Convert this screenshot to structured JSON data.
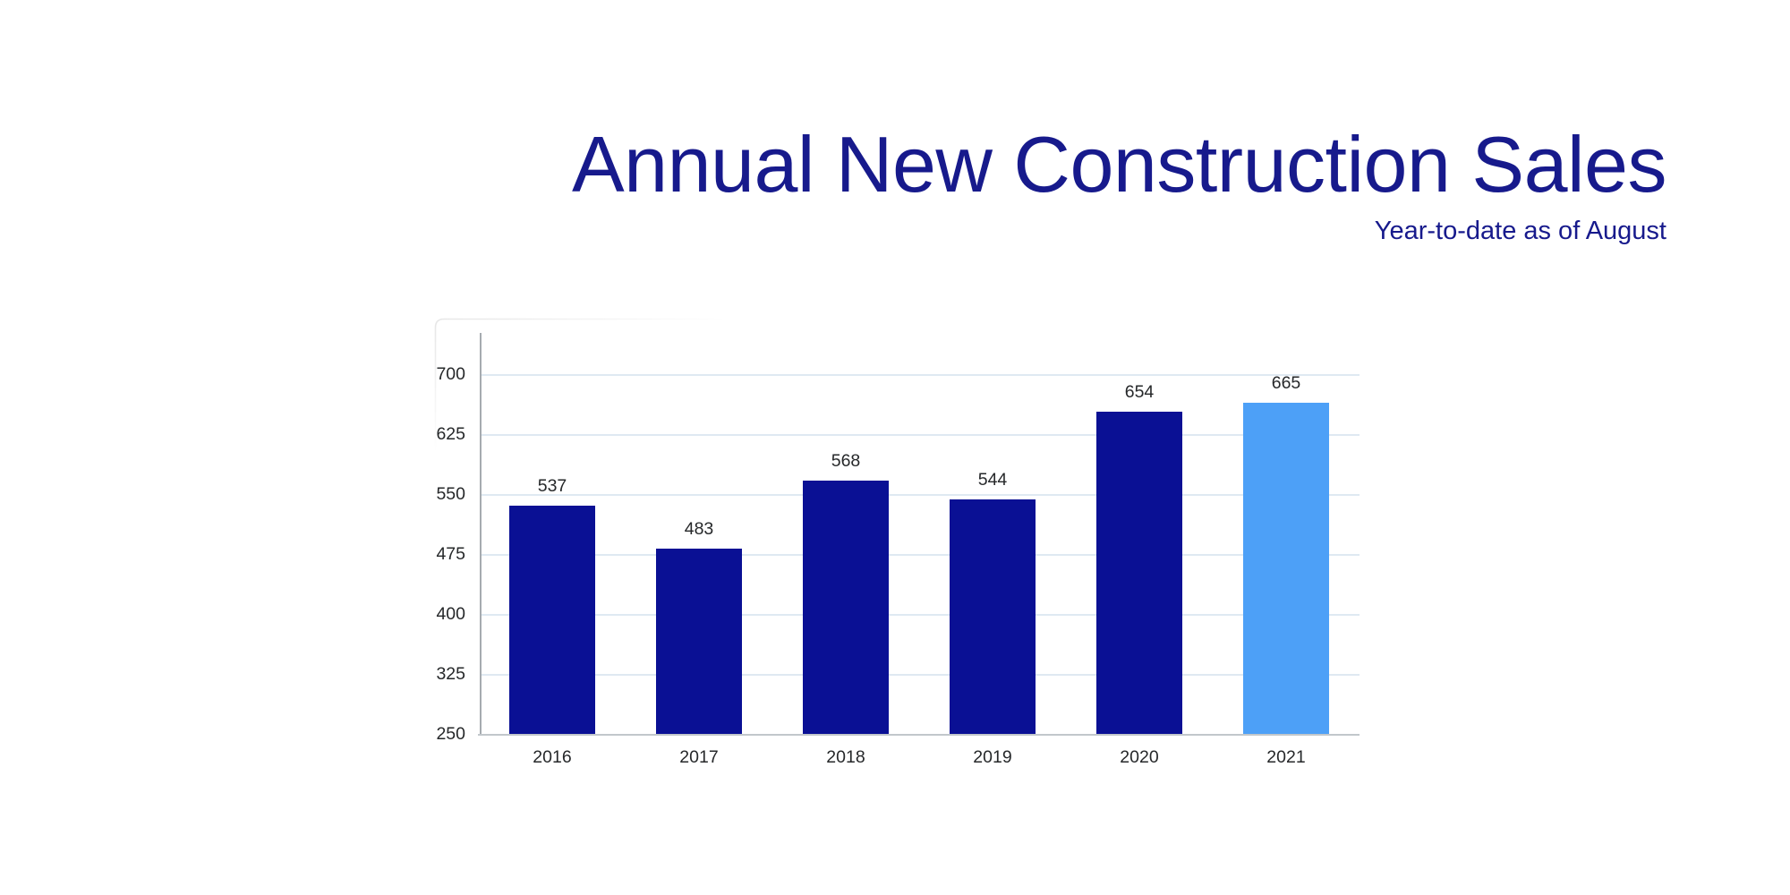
{
  "header": {
    "title": "Annual New Construction Sales",
    "subtitle": "Year-to-date as of August"
  },
  "chart_data": {
    "type": "bar",
    "title": "Annual New Construction Sales",
    "subtitle": "Year-to-date as of August",
    "categories": [
      "2016",
      "2017",
      "2018",
      "2019",
      "2020",
      "2021"
    ],
    "values": [
      537,
      483,
      568,
      544,
      654,
      665
    ],
    "data_labels": [
      "537",
      "483",
      "568",
      "544",
      "654",
      "665"
    ],
    "highlight_index": 5,
    "yticks": [
      250,
      325,
      400,
      475,
      550,
      625,
      700
    ],
    "ytick_labels": [
      "250",
      "325",
      "400",
      "475",
      "550",
      "625",
      "700"
    ],
    "ylim": [
      250,
      752
    ],
    "xlabel": "",
    "ylabel": "",
    "grid": true,
    "legend_position": "none",
    "colors": {
      "bar_navy": "#0A1094",
      "bar_highlight_blue": "#4DA0F7",
      "title_navy": "#171A8C",
      "gridline": "#DFE9F2",
      "y_axis_line": "#A6ABB0",
      "x_axis_line": "#C2C7CB",
      "label_text": "#26282A",
      "background": "#FFFFFF",
      "panel_border": "#E7E7E7"
    }
  }
}
